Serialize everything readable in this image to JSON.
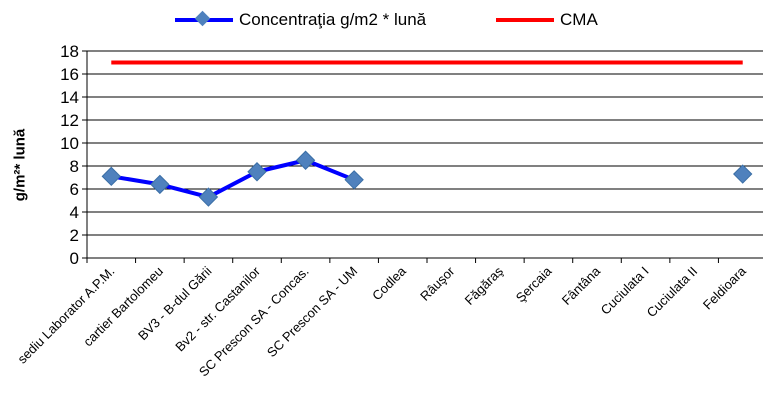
{
  "chart_data": {
    "type": "line",
    "ylabel": "g/m²* lună",
    "ylim": [
      0,
      18
    ],
    "yticks": [
      0,
      2,
      4,
      6,
      8,
      10,
      12,
      14,
      16,
      18
    ],
    "grid": true,
    "legend_position": "top",
    "categories": [
      "sediu Laborator A.P.M.",
      "cartier Bartolomeu",
      "BV3 - B-dul Gării",
      "Bv2 - str. Castanilor",
      "SC Prescon SA - Concas.",
      "SC Prescon SA - UM",
      "Codlea",
      "Râuşor",
      "Făgăraş",
      "Şercaia",
      "Fântâna",
      "Cuciulata I",
      "Cuciulata II",
      "Feldioara"
    ],
    "series": [
      {
        "name": "Concentraţia g/m2 * lună",
        "color": "#0000ff",
        "marker_color": "#4f81bd",
        "values": [
          7.1,
          6.4,
          5.3,
          7.5,
          8.5,
          6.8,
          null,
          null,
          null,
          null,
          null,
          null,
          null,
          7.3
        ]
      },
      {
        "name": "CMA",
        "color": "#ff0000",
        "values": [
          17,
          17,
          17,
          17,
          17,
          17,
          17,
          17,
          17,
          17,
          17,
          17,
          17,
          17
        ]
      }
    ]
  }
}
